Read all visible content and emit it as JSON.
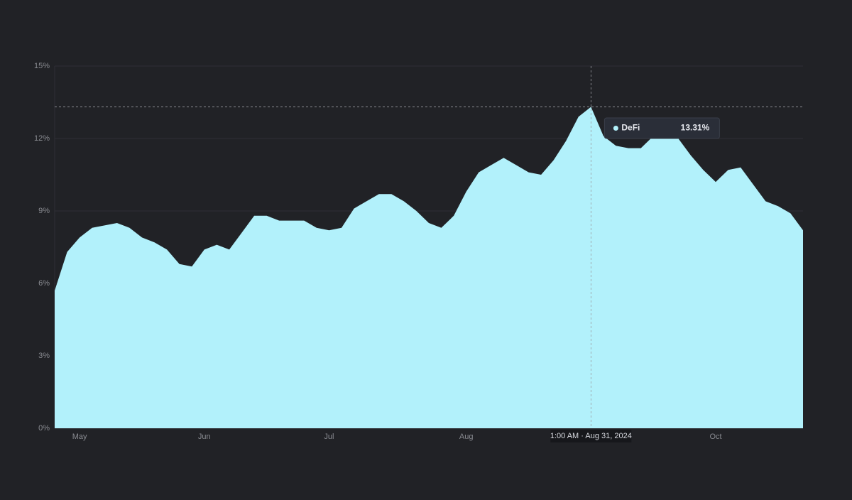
{
  "chart_data": {
    "type": "area",
    "categories": [
      null,
      null,
      "May",
      null,
      null,
      null,
      null,
      null,
      null,
      null,
      null,
      null,
      "Jun",
      null,
      null,
      null,
      null,
      null,
      null,
      null,
      null,
      null,
      "Jul",
      null,
      null,
      null,
      null,
      null,
      null,
      null,
      null,
      null,
      null,
      "Aug",
      null,
      null,
      null,
      null,
      null,
      null,
      null,
      null,
      null,
      null,
      null,
      null,
      null,
      null,
      null,
      null,
      null,
      null,
      null,
      "Oct",
      null,
      null,
      null,
      null,
      null,
      null,
      null
    ],
    "series": [
      {
        "name": "DeFi",
        "color": "#b2f1fb",
        "values": [
          5.7,
          7.3,
          7.9,
          8.3,
          8.4,
          8.5,
          8.3,
          7.9,
          7.7,
          7.4,
          6.8,
          6.7,
          7.4,
          7.6,
          7.4,
          8.1,
          8.8,
          8.8,
          8.6,
          8.6,
          8.6,
          8.3,
          8.2,
          8.3,
          9.1,
          9.4,
          9.7,
          9.7,
          9.4,
          9.0,
          8.5,
          8.3,
          8.8,
          9.8,
          10.6,
          10.9,
          11.2,
          10.9,
          10.6,
          10.5,
          11.1,
          11.9,
          12.9,
          13.31,
          12.1,
          11.7,
          11.6,
          11.6,
          12.1,
          12.1,
          12.0,
          11.3,
          10.7,
          10.2,
          10.7,
          10.8,
          10.1,
          9.4,
          9.2,
          8.9,
          8.2
        ]
      }
    ],
    "ylim": [
      0,
      15
    ],
    "yticks": [
      {
        "value": 0,
        "label": "0%"
      },
      {
        "value": 3,
        "label": "3%"
      },
      {
        "value": 6,
        "label": "6%"
      },
      {
        "value": 9,
        "label": "9%"
      },
      {
        "value": 12,
        "label": "12%"
      },
      {
        "value": 15,
        "label": "15%"
      }
    ],
    "grid": true,
    "tooltip": {
      "label": "1:00 AM · Aug 31, 2024",
      "value": 13.31,
      "value_label": "13.31%"
    }
  }
}
